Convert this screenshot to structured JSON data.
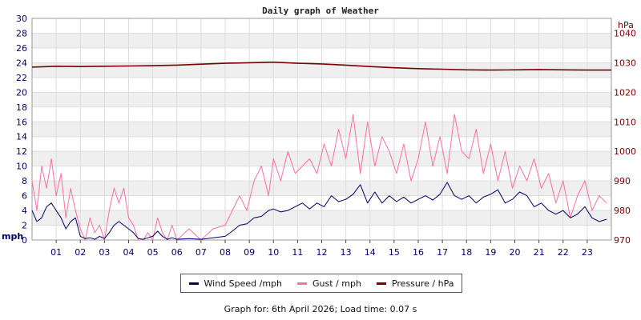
{
  "chart_data": {
    "type": "line",
    "title": "Daily graph of Weather",
    "ylabel_left": "mph",
    "ylabel_right": "hPa",
    "ylim_left": [
      0,
      30
    ],
    "ylim_right": [
      970,
      1045
    ],
    "y_ticks_left": [
      "0",
      "2",
      "4",
      "6",
      "8",
      "10",
      "12",
      "14",
      "16",
      "18",
      "20",
      "22",
      "24",
      "26",
      "28",
      "30"
    ],
    "y_ticks_right": [
      "970",
      "980",
      "990",
      "1000",
      "1010",
      "1020",
      "1030",
      "1040"
    ],
    "x_ticks": [
      "01",
      "02",
      "03",
      "04",
      "05",
      "06",
      "07",
      "08",
      "09",
      "10",
      "11",
      "12",
      "13",
      "14",
      "15",
      "16",
      "17",
      "18",
      "19",
      "20",
      "21",
      "22",
      "23"
    ],
    "xlim": [
      0,
      24
    ],
    "grid": true,
    "legend_position": "bottom",
    "series": [
      {
        "name": "Wind Speed /mph",
        "color": "#000066",
        "axis": "left",
        "x": [
          0,
          0.2,
          0.4,
          0.6,
          0.8,
          1.0,
          1.2,
          1.4,
          1.6,
          1.8,
          2.0,
          2.2,
          2.4,
          2.6,
          2.8,
          3.0,
          3.2,
          3.4,
          3.6,
          3.8,
          4.0,
          4.2,
          4.4,
          4.6,
          4.8,
          5.0,
          5.2,
          5.4,
          5.6,
          5.8,
          6.0,
          6.5,
          7.0,
          7.5,
          8.0,
          8.3,
          8.6,
          8.9,
          9.2,
          9.5,
          9.8,
          10.0,
          10.3,
          10.6,
          10.9,
          11.2,
          11.5,
          11.8,
          12.1,
          12.4,
          12.7,
          13.0,
          13.3,
          13.6,
          13.9,
          14.2,
          14.5,
          14.8,
          15.1,
          15.4,
          15.7,
          16.0,
          16.3,
          16.6,
          16.9,
          17.2,
          17.5,
          17.8,
          18.1,
          18.4,
          18.7,
          19.0,
          19.3,
          19.6,
          19.9,
          20.2,
          20.5,
          20.8,
          21.1,
          21.4,
          21.7,
          22.0,
          22.3,
          22.6,
          22.9,
          23.2,
          23.5,
          23.8
        ],
        "values": [
          4,
          2.5,
          3,
          4.5,
          5,
          4,
          3,
          1.5,
          2.5,
          3,
          0.5,
          0.2,
          0.3,
          0.1,
          0.5,
          0.2,
          1,
          2,
          2.5,
          2,
          1.5,
          1,
          0.2,
          0.1,
          0.3,
          0.5,
          1.2,
          0.5,
          0.1,
          0.3,
          0.1,
          0.2,
          0.1,
          0.3,
          0.5,
          1.2,
          2,
          2.2,
          3,
          3.2,
          4,
          4.2,
          3.8,
          4,
          4.5,
          5,
          4.2,
          5,
          4.5,
          6,
          5.2,
          5.5,
          6.2,
          7.5,
          5,
          6.5,
          5,
          6,
          5.2,
          5.8,
          5,
          5.5,
          6,
          5.4,
          6.2,
          7.8,
          6,
          5.5,
          6,
          5,
          5.8,
          6.2,
          6.8,
          5,
          5.5,
          6.5,
          6,
          4.5,
          5,
          4,
          3.5,
          4,
          3,
          3.5,
          4.5,
          3,
          2.5,
          2.8
        ]
      },
      {
        "name": "Gust / mph",
        "color": "#ff6fa0",
        "axis": "left",
        "x": [
          0,
          0.2,
          0.4,
          0.6,
          0.8,
          1.0,
          1.2,
          1.4,
          1.6,
          1.8,
          2.0,
          2.2,
          2.4,
          2.6,
          2.8,
          3.0,
          3.2,
          3.4,
          3.6,
          3.8,
          4.0,
          4.2,
          4.4,
          4.6,
          4.8,
          5.0,
          5.2,
          5.4,
          5.6,
          5.8,
          6.0,
          6.5,
          7.0,
          7.5,
          8.0,
          8.3,
          8.6,
          8.9,
          9.2,
          9.5,
          9.8,
          10.0,
          10.3,
          10.6,
          10.9,
          11.2,
          11.5,
          11.8,
          12.1,
          12.4,
          12.7,
          13.0,
          13.3,
          13.6,
          13.9,
          14.2,
          14.5,
          14.8,
          15.1,
          15.4,
          15.7,
          16.0,
          16.3,
          16.6,
          16.9,
          17.2,
          17.5,
          17.8,
          18.1,
          18.4,
          18.7,
          19.0,
          19.3,
          19.6,
          19.9,
          20.2,
          20.5,
          20.8,
          21.1,
          21.4,
          21.7,
          22.0,
          22.3,
          22.6,
          22.9,
          23.2,
          23.5,
          23.8
        ],
        "values": [
          8,
          4,
          10,
          7,
          11,
          6,
          9,
          3,
          7,
          4,
          1.5,
          0,
          3,
          1,
          2,
          0,
          4,
          7,
          5,
          7,
          3,
          2,
          0,
          0,
          1,
          0,
          3,
          1,
          0,
          2,
          0,
          1.5,
          0,
          1.5,
          2,
          4,
          6,
          4,
          8,
          10,
          6,
          11,
          8,
          12,
          9,
          10,
          11,
          9,
          13,
          10,
          15,
          11,
          17,
          9,
          16,
          10,
          14,
          12,
          9,
          13,
          8,
          11,
          16,
          10,
          14,
          9,
          17,
          12,
          11,
          15,
          9,
          13,
          8,
          12,
          7,
          10,
          8,
          11,
          7,
          9,
          5,
          8,
          3,
          6,
          8,
          4,
          6,
          5
        ]
      },
      {
        "name": "Pressure / hPa",
        "color": "#7a0000",
        "axis": "right",
        "x": [
          0,
          1,
          2,
          3,
          4,
          5,
          6,
          7,
          8,
          9,
          10,
          11,
          12,
          13,
          14,
          15,
          16,
          17,
          18,
          19,
          20,
          21,
          22,
          23,
          24
        ],
        "values": [
          1028.5,
          1028.8,
          1028.7,
          1028.8,
          1028.9,
          1029,
          1029.2,
          1029.5,
          1029.8,
          1030,
          1030.2,
          1029.8,
          1029.6,
          1029.2,
          1028.7,
          1028.3,
          1028,
          1027.8,
          1027.6,
          1027.5,
          1027.6,
          1027.7,
          1027.6,
          1027.5,
          1027.5
        ]
      }
    ]
  },
  "footer": "Graph for: 6th April 2026; Load time: 0.07 s"
}
